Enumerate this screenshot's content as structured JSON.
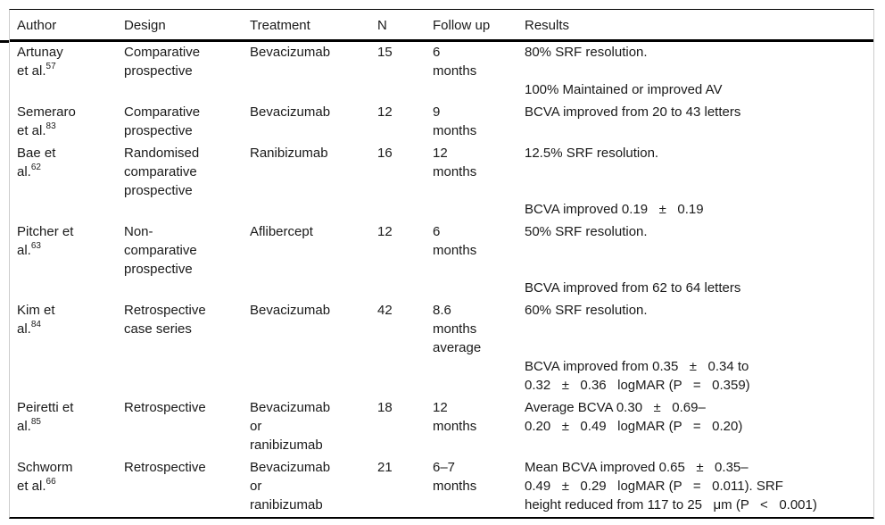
{
  "colors": {
    "background": "#ffffff",
    "text": "#1a1a1a",
    "rule": "#000000",
    "side_border": "#cccccc"
  },
  "table": {
    "columns": [
      "Author",
      "Design",
      "Treatment",
      "N",
      "Follow up",
      "Results"
    ],
    "rows": [
      {
        "author_lines": [
          "Artunay",
          "et al."
        ],
        "author_ref": "57",
        "design_lines": [
          "Comparative",
          "prospective"
        ],
        "treatment_lines": [
          "Bevacizumab"
        ],
        "n": "15",
        "followup_lines": [
          "6",
          "months"
        ],
        "results_lines": [
          "80% SRF resolution.",
          "",
          "100% Maintained or improved AV"
        ]
      },
      {
        "author_lines": [
          "Semeraro",
          "et al."
        ],
        "author_ref": "83",
        "design_lines": [
          "Comparative",
          "prospective"
        ],
        "treatment_lines": [
          "Bevacizumab"
        ],
        "n": "12",
        "followup_lines": [
          "9",
          "months"
        ],
        "results_lines": [
          "BCVA improved from 20 to 43 letters"
        ]
      },
      {
        "author_lines": [
          "Bae et",
          "al."
        ],
        "author_ref": "62",
        "design_lines": [
          "Randomised",
          "comparative",
          "prospective"
        ],
        "treatment_lines": [
          "Ranibizumab"
        ],
        "n": "16",
        "followup_lines": [
          "12",
          "months"
        ],
        "results_lines": [
          "12.5% SRF resolution.",
          "",
          "",
          "BCVA improved 0.19   ±   0.19"
        ]
      },
      {
        "author_lines": [
          "Pitcher et",
          "al."
        ],
        "author_ref": "63",
        "design_lines": [
          "Non-",
          "comparative",
          "prospective"
        ],
        "treatment_lines": [
          "Aflibercept"
        ],
        "n": "12",
        "followup_lines": [
          "6",
          "months"
        ],
        "results_lines": [
          "50% SRF resolution.",
          "",
          "",
          "BCVA improved from 62 to 64 letters"
        ]
      },
      {
        "author_lines": [
          "Kim et",
          "al."
        ],
        "author_ref": "84",
        "design_lines": [
          "Retrospective",
          "case series"
        ],
        "treatment_lines": [
          "Bevacizumab"
        ],
        "n": "42",
        "followup_lines": [
          "8.6",
          "months",
          "average"
        ],
        "results_lines": [
          "60% SRF resolution.",
          "",
          "",
          "BCVA improved from 0.35   ±   0.34 to",
          "0.32   ±   0.36   logMAR (P   =   0.359)"
        ]
      },
      {
        "author_lines": [
          "Peiretti et",
          "al."
        ],
        "author_ref": "85",
        "design_lines": [
          "Retrospective"
        ],
        "treatment_lines": [
          "Bevacizumab",
          "or",
          "ranibizumab"
        ],
        "n": "18",
        "followup_lines": [
          "12",
          "months"
        ],
        "results_lines": [
          "Average BCVA 0.30   ±   0.69–",
          "0.20   ±   0.49   logMAR (P   =   0.20)"
        ]
      },
      {
        "author_lines": [
          "Schworm",
          "et al."
        ],
        "author_ref": "66",
        "design_lines": [
          "Retrospective"
        ],
        "treatment_lines": [
          "Bevacizumab",
          "or",
          "ranibizumab"
        ],
        "n": "21",
        "followup_lines": [
          "6–7",
          "months"
        ],
        "results_lines": [
          "Mean BCVA improved 0.65   ±   0.35–",
          "0.49   ±   0.29   logMAR (P   =   0.011). SRF",
          "height reduced from 117 to 25   μm (P   <   0.001)"
        ]
      }
    ]
  }
}
